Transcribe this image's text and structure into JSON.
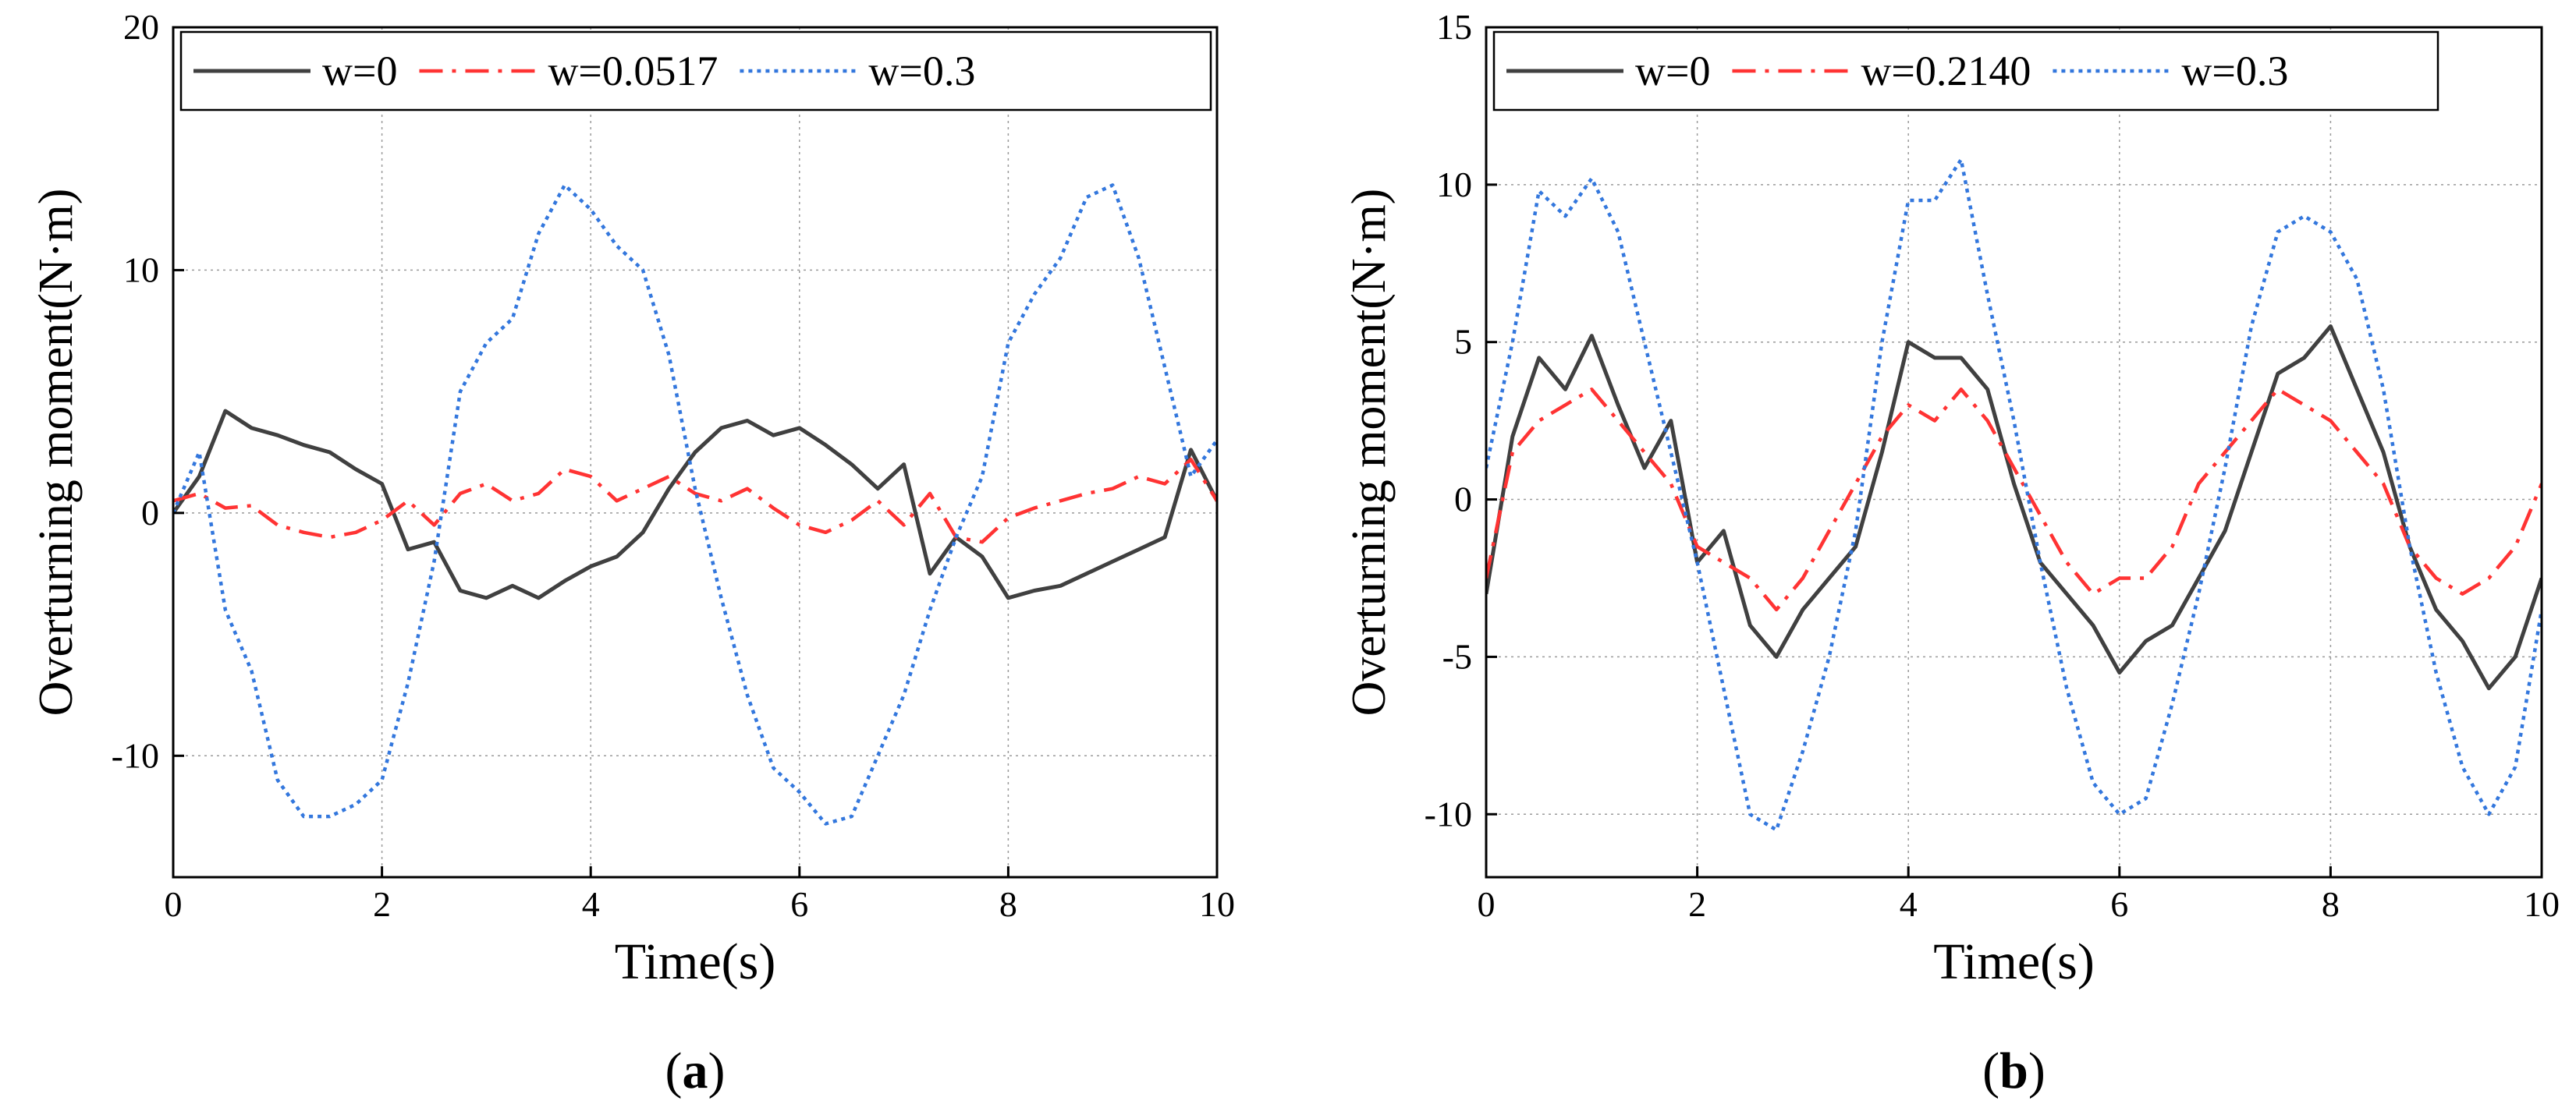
{
  "chart_data": [
    {
      "type": "line",
      "panel_label": "a",
      "title": "",
      "xlabel": "Time(s)",
      "ylabel": "Overturning moment(N·m)",
      "xlim": [
        0,
        10
      ],
      "ylim": [
        -15,
        20
      ],
      "xticks": [
        0,
        2,
        4,
        6,
        8,
        10
      ],
      "yticks": [
        -10,
        0,
        10,
        20
      ],
      "grid": true,
      "legend": "top, single row",
      "x": [
        0,
        0.25,
        0.5,
        0.75,
        1,
        1.25,
        1.5,
        1.75,
        2,
        2.25,
        2.5,
        2.75,
        3,
        3.25,
        3.5,
        3.75,
        4,
        4.25,
        4.5,
        4.75,
        5,
        5.25,
        5.5,
        5.75,
        6,
        6.25,
        6.5,
        6.75,
        7,
        7.25,
        7.5,
        7.75,
        8,
        8.25,
        8.5,
        8.75,
        9,
        9.25,
        9.5,
        9.75,
        10
      ],
      "series": [
        {
          "name": "w=0",
          "style": "solid",
          "color": "#404040",
          "values": [
            0,
            1.5,
            4.2,
            3.5,
            3.2,
            2.8,
            2.5,
            1.8,
            1.2,
            -1.5,
            -1.2,
            -3.2,
            -3.5,
            -3.0,
            -3.5,
            -2.8,
            -2.2,
            -1.8,
            -0.8,
            1.0,
            2.5,
            3.5,
            3.8,
            3.2,
            3.5,
            2.8,
            2.0,
            1.0,
            2.0,
            -2.5,
            -1.0,
            -1.8,
            -3.5,
            -3.2,
            -3.0,
            -2.5,
            -2.0,
            -1.5,
            -1.0,
            2.6,
            0.5
          ]
        },
        {
          "name": "w=0.0517",
          "style": "dashdot",
          "color": "#ff3333",
          "values": [
            0.5,
            0.8,
            0.2,
            0.3,
            -0.5,
            -0.8,
            -1.0,
            -0.8,
            -0.3,
            0.5,
            -0.5,
            0.8,
            1.2,
            0.5,
            0.8,
            1.8,
            1.5,
            0.5,
            1.0,
            1.5,
            0.8,
            0.5,
            1.0,
            0.2,
            -0.5,
            -0.8,
            -0.3,
            0.5,
            -0.5,
            0.8,
            -1.0,
            -1.2,
            -0.2,
            0.2,
            0.5,
            0.8,
            1.0,
            1.5,
            1.2,
            2.2,
            0.5
          ]
        },
        {
          "name": "w=0.3",
          "style": "dotted",
          "color": "#3377dd",
          "values": [
            0,
            2.5,
            -4.0,
            -6.5,
            -11.0,
            -12.5,
            -12.5,
            -12.0,
            -11.0,
            -7.0,
            -2.0,
            5.0,
            7.0,
            8.0,
            11.5,
            13.5,
            12.5,
            11.0,
            10.0,
            6.5,
            1.0,
            -3.5,
            -7.5,
            -10.5,
            -11.5,
            -12.8,
            -12.5,
            -10.0,
            -7.5,
            -4.0,
            -1.0,
            1.5,
            7.0,
            9.0,
            10.5,
            13.0,
            13.5,
            10.5,
            6.0,
            1.5,
            3.0
          ]
        }
      ]
    },
    {
      "type": "line",
      "panel_label": "b",
      "title": "",
      "xlabel": "Time(s)",
      "ylabel": "Overturning moment(N·m)",
      "xlim": [
        0,
        10
      ],
      "ylim": [
        -12,
        15
      ],
      "xticks": [
        0,
        2,
        4,
        6,
        8,
        10
      ],
      "yticks": [
        -10,
        -5,
        0,
        5,
        10,
        15
      ],
      "grid": true,
      "legend": "top, single row",
      "x": [
        0,
        0.25,
        0.5,
        0.75,
        1,
        1.25,
        1.5,
        1.75,
        2,
        2.25,
        2.5,
        2.75,
        3,
        3.25,
        3.5,
        3.75,
        4,
        4.25,
        4.5,
        4.75,
        5,
        5.25,
        5.5,
        5.75,
        6,
        6.25,
        6.5,
        6.75,
        7,
        7.25,
        7.5,
        7.75,
        8,
        8.25,
        8.5,
        8.75,
        9,
        9.25,
        9.5,
        9.75,
        10
      ],
      "series": [
        {
          "name": "w=0",
          "style": "solid",
          "color": "#404040",
          "values": [
            -3.0,
            2.0,
            4.5,
            3.5,
            5.2,
            3.0,
            1.0,
            2.5,
            -2.0,
            -1.0,
            -4.0,
            -5.0,
            -3.5,
            -2.5,
            -1.5,
            1.5,
            5.0,
            4.5,
            4.5,
            3.5,
            0.5,
            -2.0,
            -3.0,
            -4.0,
            -5.5,
            -4.5,
            -4.0,
            -2.5,
            -1.0,
            1.5,
            4.0,
            4.5,
            5.5,
            3.5,
            1.5,
            -1.5,
            -3.5,
            -4.5,
            -6.0,
            -5.0,
            -2.5
          ]
        },
        {
          "name": "w=0.2140",
          "style": "dashdot",
          "color": "#ff3333",
          "values": [
            -2.5,
            1.5,
            2.5,
            3.0,
            3.5,
            2.5,
            1.5,
            0.5,
            -1.5,
            -2.0,
            -2.5,
            -3.5,
            -2.5,
            -1.0,
            0.5,
            2.0,
            3.0,
            2.5,
            3.5,
            2.5,
            1.0,
            -0.5,
            -2.0,
            -3.0,
            -2.5,
            -2.5,
            -1.5,
            0.5,
            1.5,
            2.5,
            3.5,
            3.0,
            2.5,
            1.5,
            0.5,
            -1.5,
            -2.5,
            -3.0,
            -2.5,
            -1.5,
            0.5
          ]
        },
        {
          "name": "w=0.3",
          "style": "dotted",
          "color": "#3377dd",
          "values": [
            1.0,
            5.0,
            9.8,
            9.0,
            10.2,
            8.5,
            5.0,
            1.5,
            -2.0,
            -6.0,
            -10.0,
            -10.5,
            -8.0,
            -5.0,
            -1.0,
            5.0,
            9.5,
            9.5,
            10.8,
            6.5,
            2.5,
            -2.0,
            -6.0,
            -9.0,
            -10.0,
            -9.5,
            -6.5,
            -3.0,
            1.0,
            5.5,
            8.5,
            9.0,
            8.5,
            7.0,
            3.5,
            -1.5,
            -5.5,
            -8.5,
            -10.0,
            -8.5,
            -3.5
          ]
        }
      ]
    }
  ]
}
